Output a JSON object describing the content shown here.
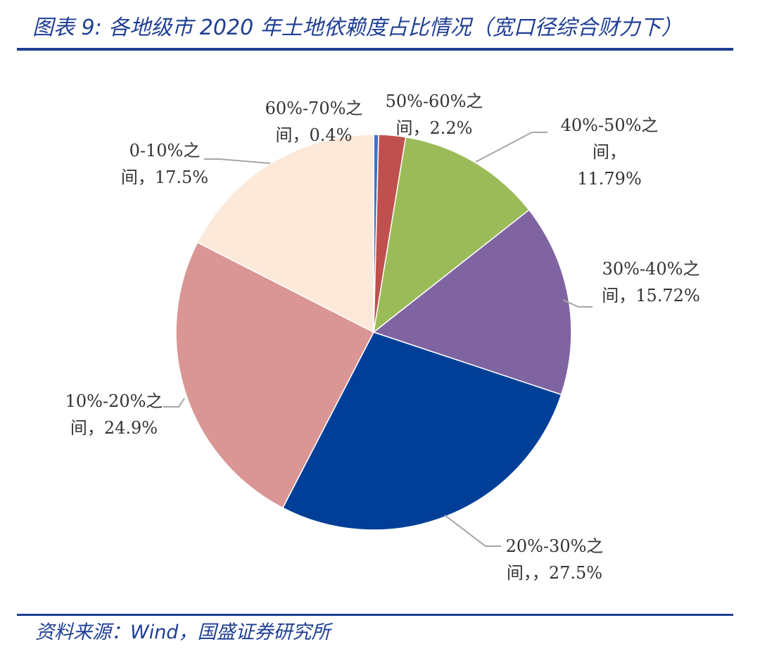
{
  "title": "图表 9:  各地级市 2020 年土地依赖度占比情况（宽口径综合财力下）",
  "source": "资料来源：Wind，国盛证券研究所",
  "chart_data": {
    "type": "pie",
    "start_angle_deg": 0,
    "direction": "clockwise",
    "slices": [
      {
        "label": [
          "60%-70%之",
          "间，0.4%"
        ],
        "value": 0.4,
        "color": "#4472c4"
      },
      {
        "label": [
          "50%-60%之",
          "间，2.2%"
        ],
        "value": 2.2,
        "color": "#c0504d"
      },
      {
        "label": [
          "40%-50%之",
          "间，",
          "11.79%"
        ],
        "value": 11.79,
        "color": "#9bbb59"
      },
      {
        "label": [
          "30%-40%之",
          "间，15.72%"
        ],
        "value": 15.72,
        "color": "#8064a2"
      },
      {
        "label": [
          "20%-30%之",
          "间，，27.5%"
        ],
        "value": 27.5,
        "color": "#003f98"
      },
      {
        "label": [
          "10%-20%之",
          "间，24.9%"
        ],
        "value": 24.9,
        "color": "#d99694"
      },
      {
        "label": [
          "0-10%之",
          "间，17.5%"
        ],
        "value": 17.5,
        "color": "#fde9d9"
      }
    ]
  }
}
